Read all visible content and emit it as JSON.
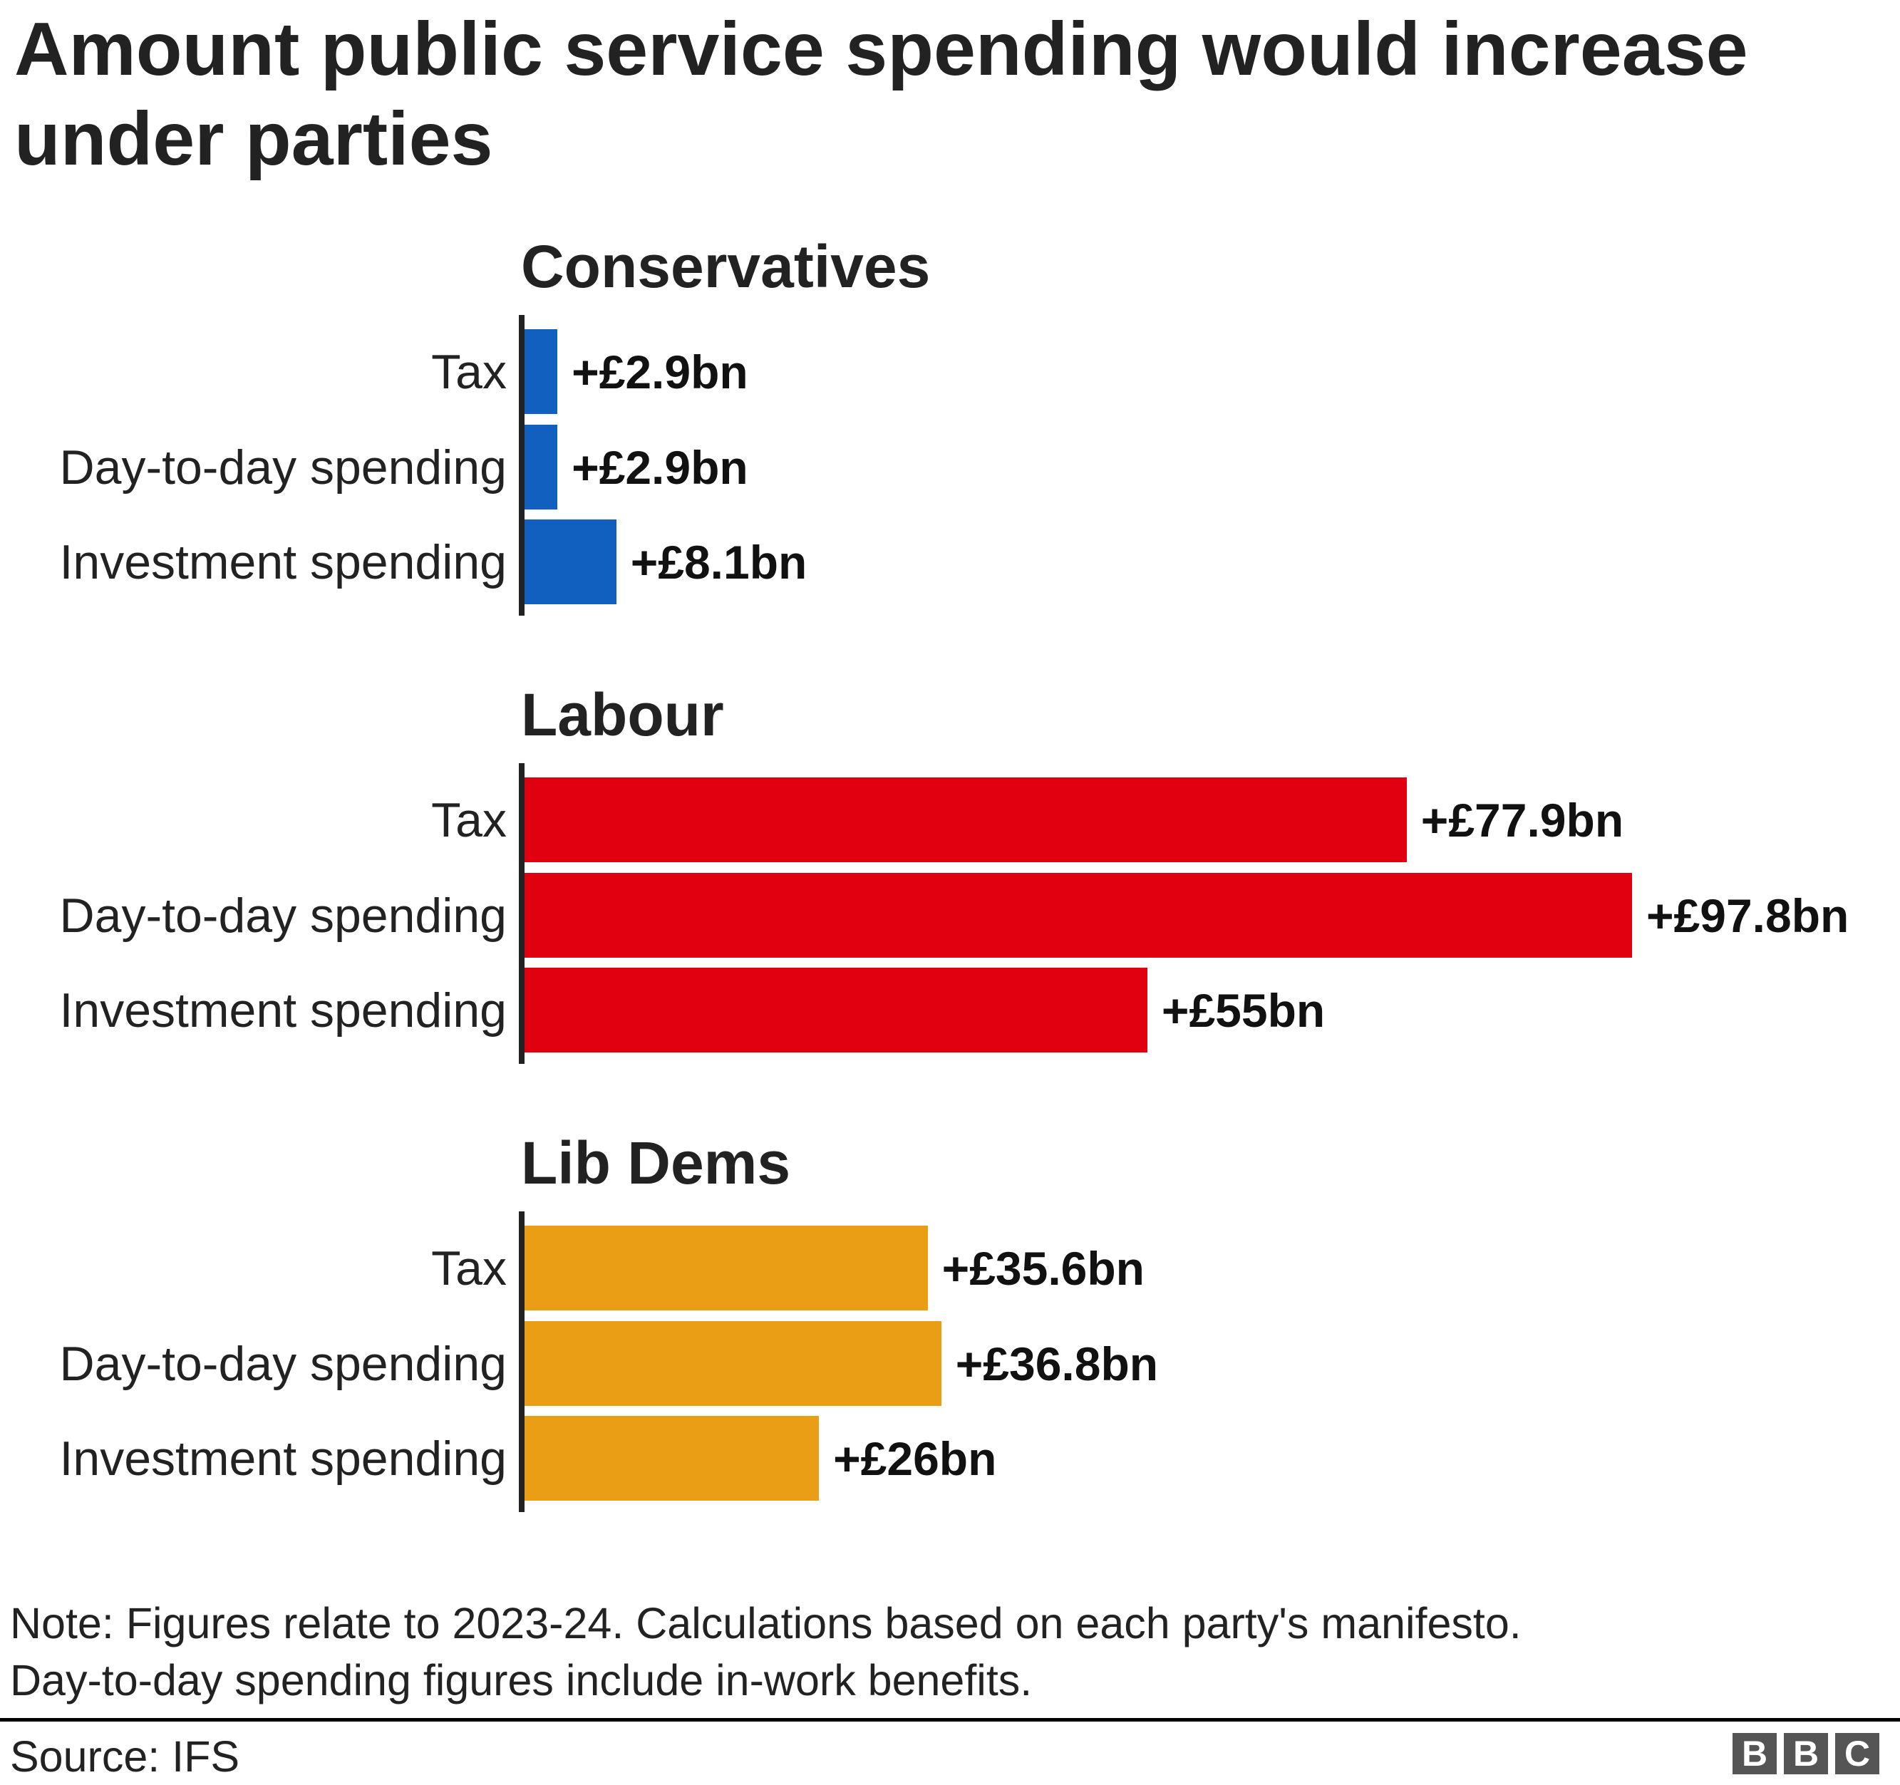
{
  "chart_data": {
    "type": "bar",
    "orientation": "horizontal",
    "title": "Amount public service spending would increase under parties",
    "categories": [
      "Tax",
      "Day-to-day spending",
      "Investment spending"
    ],
    "unit": "£bn",
    "xlim": [
      0,
      97.8
    ],
    "grid": false,
    "panels": [
      {
        "name": "Conservatives",
        "color": "#1160bf",
        "values": [
          2.9,
          2.9,
          8.1
        ],
        "labels": [
          "+£2.9bn",
          "+£2.9bn",
          "+£8.1bn"
        ]
      },
      {
        "name": "Labour",
        "color": "#e1000f",
        "values": [
          77.9,
          97.8,
          55
        ],
        "labels": [
          "+£77.9bn",
          "+£97.8bn",
          "+£55bn"
        ]
      },
      {
        "name": "Lib Dems",
        "color": "#e99e16",
        "values": [
          35.6,
          36.8,
          26
        ],
        "labels": [
          "+£35.6bn",
          "+£36.8bn",
          "+£26bn"
        ]
      }
    ]
  },
  "note": [
    "Note: Figures relate to 2023-24. Calculations based on each party's manifesto.",
    "Day-to-day spending figures include in-work benefits."
  ],
  "source": "Source: IFS",
  "logo": [
    "B",
    "B",
    "C"
  ]
}
